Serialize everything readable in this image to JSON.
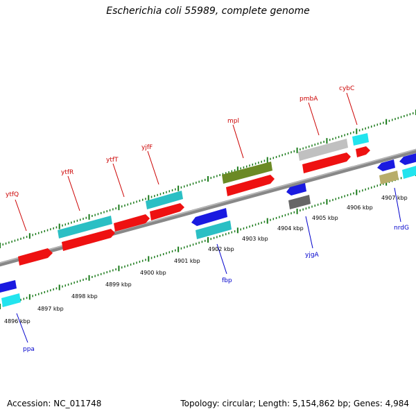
{
  "header": {
    "title": "Escherichia coli 55989, complete genome"
  },
  "footer": {
    "accession": "Accession: NC_011748",
    "stats": "Topology: circular; Length: 5,154,862 bp; Genes: 4,984"
  },
  "scale": {
    "labels": [
      "4896 kbp",
      "4897 kbp",
      "4898 kbp",
      "4899 kbp",
      "4900 kbp",
      "4901 kbp",
      "4902 kbp",
      "4903 kbp",
      "4904 kbp",
      "4905 kbp",
      "4906 kbp",
      "4907 kbp"
    ]
  },
  "genes": {
    "forward": [
      {
        "id": "f1",
        "label": "",
        "color": "#ee1111"
      },
      {
        "id": "ytfR",
        "label": "ytfR",
        "color": "#ee1111"
      },
      {
        "id": "ytfR_b",
        "label": "",
        "color": "#2bbfc4"
      },
      {
        "id": "ytfT",
        "label": "ytfT",
        "color": "#ee1111"
      },
      {
        "id": "yjfF",
        "label": "yjfF",
        "color": "#ee1111"
      },
      {
        "id": "yjfF_b",
        "label": "",
        "color": "#2bbfc4"
      },
      {
        "id": "mpl",
        "label": "mpl",
        "color": "#ee1111"
      },
      {
        "id": "mpl_b",
        "label": "",
        "color": "#6b8a25"
      },
      {
        "id": "pmbA",
        "label": "pmbA",
        "color": "#ee1111"
      },
      {
        "id": "pmbA_b",
        "label": "",
        "color": "#c0c0c0"
      },
      {
        "id": "cybC",
        "label": "cybC",
        "color": "#ee1111"
      },
      {
        "id": "cybC_b",
        "label": "",
        "color": "#22e4ee"
      }
    ],
    "reverse": [
      {
        "id": "ppa",
        "label": "ppa",
        "color": "#1a1ae0"
      },
      {
        "id": "ppa_b",
        "label": "",
        "color": "#22e4ee"
      },
      {
        "id": "fbp",
        "label": "fbp",
        "color": "#1a1ae0"
      },
      {
        "id": "fbp_b",
        "label": "",
        "color": "#2bbfc4"
      },
      {
        "id": "yjgA",
        "label": "yjgA",
        "color": "#1a1ae0"
      },
      {
        "id": "yjgA_b",
        "label": "",
        "color": "#666666"
      },
      {
        "id": "nrdG",
        "label": "nrdG",
        "color": "#1a1ae0"
      },
      {
        "id": "nrdG_b",
        "label": "",
        "color": "#b8ad6a"
      },
      {
        "id": "r_end",
        "label": "",
        "color": "#1a1ae0"
      },
      {
        "id": "r_end_b",
        "label": "",
        "color": "#22e4ee"
      }
    ],
    "forward_labels": [
      "ytfQ",
      "ytfR",
      "ytfT",
      "yjfF",
      "mpl",
      "pmbA",
      "cybC"
    ],
    "reverse_labels": [
      "ppa",
      "fbp",
      "yjgA",
      "nrdG"
    ]
  },
  "colors": {
    "forward_label": "#cc0000",
    "reverse_label": "#0000cc",
    "tick": "#1a7a1a",
    "backbone": "#888888"
  }
}
